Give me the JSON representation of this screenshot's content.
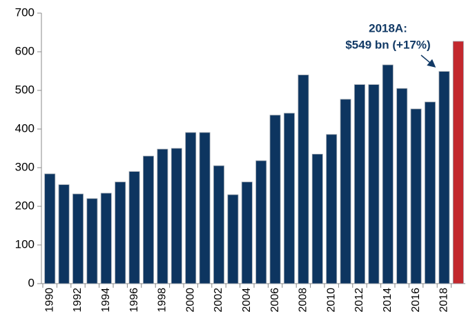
{
  "chart_data": {
    "type": "bar",
    "categories": [
      "1990",
      null,
      "1992",
      null,
      "1994",
      null,
      "1996",
      null,
      "1998",
      null,
      "2000",
      null,
      "2002",
      null,
      "2004",
      null,
      "2006",
      null,
      "2008",
      null,
      "2010",
      null,
      "2012",
      null,
      "2014",
      null,
      "2016",
      null,
      "2018",
      null
    ],
    "values": [
      284,
      256,
      232,
      220,
      234,
      263,
      290,
      330,
      348,
      350,
      391,
      391,
      305,
      230,
      263,
      318,
      436,
      441,
      540,
      335,
      386,
      477,
      515,
      515,
      566,
      505,
      452,
      470,
      549,
      627
    ],
    "colors": [
      "#0d3560",
      "#0d3560",
      "#0d3560",
      "#0d3560",
      "#0d3560",
      "#0d3560",
      "#0d3560",
      "#0d3560",
      "#0d3560",
      "#0d3560",
      "#0d3560",
      "#0d3560",
      "#0d3560",
      "#0d3560",
      "#0d3560",
      "#0d3560",
      "#0d3560",
      "#0d3560",
      "#0d3560",
      "#0d3560",
      "#0d3560",
      "#0d3560",
      "#0d3560",
      "#0d3560",
      "#0d3560",
      "#0d3560",
      "#0d3560",
      "#0d3560",
      "#0d3560",
      "#c3282e"
    ],
    "ylim": [
      0,
      700
    ],
    "yticks": [
      0,
      100,
      200,
      300,
      400,
      500,
      600,
      700
    ],
    "grid": false,
    "annotation": [
      "2018A:",
      "$549 bn (+17%)"
    ]
  }
}
